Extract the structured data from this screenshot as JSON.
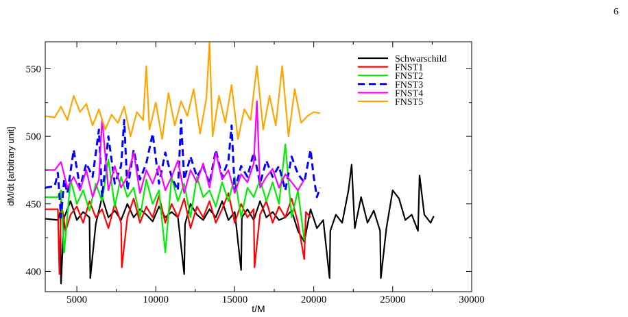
{
  "page_number": "6",
  "chart_data": {
    "type": "line",
    "title": "",
    "xlabel": "t/M",
    "ylabel": "dM/dt [arbitrary unit]",
    "xlim": [
      3000,
      30000
    ],
    "ylim": [
      385,
      570
    ],
    "x_ticks": [
      5000,
      10000,
      15000,
      20000,
      25000,
      30000
    ],
    "y_ticks": [
      400,
      450,
      500,
      550
    ],
    "grid": false,
    "legend_position": "top-right",
    "series": [
      {
        "name": "Schwarschild",
        "color": "#000000",
        "dash": "solid",
        "x": [
          3000,
          3800,
          3950,
          4000,
          4200,
          4600,
          5000,
          5400,
          5800,
          5850,
          6200,
          6600,
          7000,
          7400,
          7800,
          8200,
          8600,
          9000,
          9400,
          9800,
          10200,
          10600,
          11000,
          11400,
          11800,
          11850,
          12200,
          12600,
          13000,
          13400,
          13800,
          14200,
          14600,
          15000,
          15400,
          15450,
          15800,
          16200,
          16600,
          17000,
          17400,
          17800,
          18200,
          18600,
          19000,
          19400,
          19800,
          20200,
          20600,
          21000,
          21050,
          21400,
          21800,
          22200,
          22400,
          22600,
          23000,
          23400,
          23800,
          24200,
          24250,
          24600,
          25000,
          25400,
          25800,
          26200,
          26600,
          26700,
          27000,
          27400,
          27600
        ],
        "y": [
          439,
          438,
          444,
          391,
          440,
          452,
          438,
          444,
          440,
          395,
          435,
          455,
          440,
          445,
          438,
          450,
          440,
          446,
          442,
          437,
          448,
          440,
          444,
          440,
          398,
          435,
          450,
          442,
          438,
          446,
          440,
          452,
          438,
          444,
          401,
          440,
          446,
          438,
          452,
          440,
          444,
          438,
          440,
          445,
          430,
          422,
          446,
          432,
          438,
          395,
          430,
          442,
          436,
          460,
          479,
          432,
          455,
          436,
          445,
          430,
          395,
          432,
          460,
          454,
          438,
          442,
          430,
          471,
          442,
          436,
          441
        ]
      },
      {
        "name": "FNST1",
        "color": "#ff0000",
        "dash": "solid",
        "x": [
          3000,
          3800,
          3900,
          4000,
          4300,
          4600,
          5000,
          5400,
          5800,
          6200,
          6600,
          7000,
          7400,
          7800,
          7850,
          8200,
          8600,
          9000,
          9400,
          9800,
          10200,
          10600,
          11000,
          11400,
          11800,
          12200,
          12600,
          13000,
          13400,
          13800,
          14200,
          14600,
          15000,
          15400,
          15800,
          16200,
          16250,
          16600,
          17000,
          17400,
          17800,
          18200,
          18600,
          19000,
          19400,
          19500,
          19800
        ],
        "y": [
          446,
          446,
          398,
          452,
          430,
          442,
          448,
          436,
          452,
          440,
          446,
          432,
          450,
          436,
          403,
          440,
          454,
          436,
          448,
          440,
          456,
          436,
          450,
          440,
          454,
          432,
          448,
          440,
          452,
          436,
          446,
          458,
          436,
          450,
          440,
          446,
          403,
          442,
          452,
          436,
          448,
          440,
          454,
          436,
          409,
          444,
          440
        ]
      },
      {
        "name": "FNST2",
        "color": "#00ee00",
        "dash": "solid",
        "x": [
          3000,
          3800,
          4000,
          4200,
          4600,
          5000,
          5400,
          5800,
          6200,
          6600,
          7000,
          7400,
          7800,
          8200,
          8600,
          9000,
          9400,
          9800,
          10200,
          10600,
          11000,
          11400,
          11800,
          12200,
          12600,
          13000,
          13400,
          13800,
          14200,
          14600,
          15000,
          15400,
          15800,
          16200,
          16600,
          17000,
          17400,
          17800,
          18200,
          18600,
          19000,
          19400
        ],
        "y": [
          455,
          455,
          460,
          414,
          468,
          450,
          460,
          445,
          465,
          452,
          483,
          448,
          470,
          455,
          462,
          440,
          468,
          450,
          460,
          414,
          470,
          452,
          465,
          440,
          470,
          455,
          460,
          448,
          466,
          452,
          470,
          440,
          462,
          455,
          468,
          452,
          466,
          450,
          494,
          440,
          460,
          423
        ]
      },
      {
        "name": "FNST3",
        "color": "#0000ff",
        "dash": "dashed",
        "x": [
          3000,
          3600,
          3800,
          4000,
          4200,
          4400,
          4800,
          5200,
          5600,
          6000,
          6400,
          6600,
          7000,
          7400,
          7800,
          8000,
          8200,
          8600,
          9000,
          9400,
          9800,
          10200,
          10600,
          11000,
          11400,
          11600,
          11800,
          12200,
          12600,
          13000,
          13400,
          13800,
          14200,
          14600,
          14800,
          15000,
          15400,
          15800,
          16200,
          16600,
          17000,
          17400,
          17800,
          18200,
          18600,
          19000,
          19400,
          19800,
          20000,
          20200,
          20400
        ],
        "y": [
          462,
          463,
          473,
          440,
          468,
          458,
          490,
          462,
          480,
          470,
          505,
          455,
          500,
          465,
          478,
          512,
          460,
          490,
          468,
          480,
          502,
          465,
          488,
          470,
          460,
          512,
          468,
          485,
          470,
          478,
          465,
          490,
          470,
          482,
          508,
          460,
          478,
          470,
          488,
          465,
          482,
          470,
          478,
          460,
          485,
          472,
          466,
          490,
          470,
          455,
          462
        ]
      },
      {
        "name": "FNST4",
        "color": "#ff00ff",
        "dash": "solid",
        "x": [
          3000,
          3600,
          4000,
          4400,
          4800,
          5200,
          5600,
          6000,
          6400,
          6600,
          7000,
          7400,
          7800,
          8200,
          8600,
          9000,
          9400,
          9800,
          10200,
          10600,
          11000,
          11400,
          11800,
          12200,
          12600,
          13000,
          13400,
          13800,
          14200,
          14600,
          15000,
          15400,
          15800,
          16200,
          16400,
          16600,
          17000,
          17400,
          17800,
          18200,
          18600,
          19000,
          19400
        ],
        "y": [
          475,
          475,
          481,
          462,
          470,
          460,
          475,
          455,
          468,
          513,
          460,
          478,
          462,
          470,
          488,
          458,
          475,
          465,
          478,
          460,
          470,
          482,
          458,
          475,
          466,
          480,
          462,
          488,
          468,
          475,
          458,
          472,
          466,
          480,
          526,
          462,
          470,
          476,
          462,
          472,
          466,
          460,
          468
        ]
      },
      {
        "name": "FNST5",
        "color": "#ffa500",
        "dash": "solid",
        "x": [
          3000,
          3600,
          4000,
          4400,
          4800,
          5200,
          5600,
          6000,
          6400,
          6800,
          7200,
          7600,
          8000,
          8400,
          8800,
          9200,
          9400,
          9600,
          10000,
          10400,
          10800,
          11200,
          11600,
          12000,
          12400,
          12800,
          13200,
          13400,
          13600,
          14000,
          14400,
          14800,
          15200,
          15600,
          16000,
          16400,
          16800,
          17200,
          17600,
          18000,
          18400,
          18800,
          19200,
          19600,
          20000,
          20400
        ],
        "y": [
          515,
          514,
          522,
          512,
          530,
          518,
          524,
          508,
          520,
          505,
          516,
          510,
          522,
          500,
          518,
          512,
          552,
          505,
          525,
          498,
          532,
          508,
          526,
          515,
          535,
          502,
          528,
          570,
          500,
          530,
          510,
          538,
          498,
          520,
          512,
          552,
          505,
          530,
          508,
          552,
          500,
          535,
          510,
          515,
          518,
          517
        ]
      }
    ]
  }
}
